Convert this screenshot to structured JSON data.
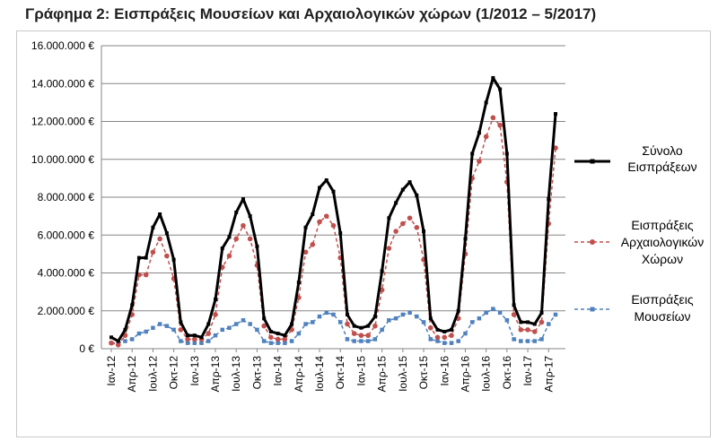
{
  "title": "Γράφημα 2: Εισπράξεις Μουσείων και Αρχαιολογικών χώρων (1/2012 – 5/2017)",
  "chart_data": {
    "type": "line",
    "title": "Γράφημα 2: Εισπράξεις Μουσείων και Αρχαιολογικών χώρων (1/2012 – 5/2017)",
    "x": [
      "Ιαν-12",
      "Φεβ-12",
      "Μαρ-12",
      "Απρ-12",
      "Μαϊ-12",
      "Ιουν-12",
      "Ιουλ-12",
      "Αυγ-12",
      "Σεπ-12",
      "Οκτ-12",
      "Νοε-12",
      "Δεκ-12",
      "Ιαν-13",
      "Φεβ-13",
      "Μαρ-13",
      "Απρ-13",
      "Μαϊ-13",
      "Ιουν-13",
      "Ιουλ-13",
      "Αυγ-13",
      "Σεπ-13",
      "Οκτ-13",
      "Νοε-13",
      "Δεκ-13",
      "Ιαν-14",
      "Φεβ-14",
      "Μαρ-14",
      "Απρ-14",
      "Μαϊ-14",
      "Ιουν-14",
      "Ιουλ-14",
      "Αυγ-14",
      "Σεπ-14",
      "Οκτ-14",
      "Νοε-14",
      "Δεκ-14",
      "Ιαν-15",
      "Φεβ-15",
      "Μαρ-15",
      "Απρ-15",
      "Μαϊ-15",
      "Ιουν-15",
      "Ιουλ-15",
      "Αυγ-15",
      "Σεπ-15",
      "Οκτ-15",
      "Νοε-15",
      "Δεκ-15",
      "Ιαν-16",
      "Φεβ-16",
      "Μαρ-16",
      "Απρ-16",
      "Μαϊ-16",
      "Ιουν-16",
      "Ιουλ-16",
      "Αυγ-16",
      "Σεπ-16",
      "Οκτ-16",
      "Νοε-16",
      "Δεκ-16",
      "Ιαν-17",
      "Φεβ-17",
      "Μαρ-17",
      "Απρ-17",
      "Μαϊ-17"
    ],
    "x_tick_labels": [
      {
        "index": 0,
        "label": "Ιαν-12"
      },
      {
        "index": 3,
        "label": "Απρ-12"
      },
      {
        "index": 6,
        "label": "Ιουλ-12"
      },
      {
        "index": 9,
        "label": "Οκτ-12"
      },
      {
        "index": 12,
        "label": "Ιαν-13"
      },
      {
        "index": 15,
        "label": "Απρ-13"
      },
      {
        "index": 18,
        "label": "Ιουλ-13"
      },
      {
        "index": 21,
        "label": "Οκτ-13"
      },
      {
        "index": 24,
        "label": "Ιαν-14"
      },
      {
        "index": 27,
        "label": "Απρ-14"
      },
      {
        "index": 30,
        "label": "Ιουλ-14"
      },
      {
        "index": 33,
        "label": "Οκτ-14"
      },
      {
        "index": 36,
        "label": "Ιαν-15"
      },
      {
        "index": 39,
        "label": "Απρ-15"
      },
      {
        "index": 42,
        "label": "Ιουλ-15"
      },
      {
        "index": 45,
        "label": "Οκτ-15"
      },
      {
        "index": 48,
        "label": "Ιαν-16"
      },
      {
        "index": 51,
        "label": "Απρ-16"
      },
      {
        "index": 54,
        "label": "Ιουλ-16"
      },
      {
        "index": 57,
        "label": "Οκτ-16"
      },
      {
        "index": 60,
        "label": "Ιαν-17"
      },
      {
        "index": 63,
        "label": "Απρ-17"
      }
    ],
    "y_ticks": [
      {
        "value": 0,
        "label": "0 €"
      },
      {
        "value": 2000000,
        "label": "2.000.000 €"
      },
      {
        "value": 4000000,
        "label": "4.000.000 €"
      },
      {
        "value": 6000000,
        "label": "6.000.000 €"
      },
      {
        "value": 8000000,
        "label": "8.000.000 €"
      },
      {
        "value": 10000000,
        "label": "10.000.000 €"
      },
      {
        "value": 12000000,
        "label": "12.000.000 €"
      },
      {
        "value": 14000000,
        "label": "14.000.000 €"
      },
      {
        "value": 16000000,
        "label": "16.000.000 €"
      }
    ],
    "ylim": [
      0,
      16000000
    ],
    "grid": "horizontal",
    "legend_position": "right",
    "xlabel": "",
    "ylabel": "",
    "series": [
      {
        "name_lines": [
          "Σύνολο",
          "Εισπράξεων"
        ],
        "color": "#000000",
        "style": "solid",
        "marker": "square",
        "values": [
          600000,
          400000,
          1000000,
          2300000,
          4800000,
          4800000,
          6400000,
          7100000,
          6100000,
          4700000,
          1400000,
          700000,
          700000,
          600000,
          1300000,
          2600000,
          5300000,
          5900000,
          7200000,
          7900000,
          7000000,
          5400000,
          1600000,
          900000,
          800000,
          700000,
          1300000,
          3500000,
          6400000,
          7100000,
          8500000,
          8900000,
          8300000,
          6100000,
          1800000,
          1200000,
          1100000,
          1200000,
          1700000,
          4100000,
          6900000,
          7700000,
          8400000,
          8800000,
          8100000,
          6200000,
          1600000,
          1000000,
          900000,
          1000000,
          2000000,
          5800000,
          10300000,
          11400000,
          13000000,
          14300000,
          13700000,
          10300000,
          2300000,
          1400000,
          1400000,
          1300000,
          1900000,
          7900000,
          12400000
        ]
      },
      {
        "name_lines": [
          "Εισπράξεις",
          "Αρχαιολογικών",
          "Χώρων"
        ],
        "color": "#c0504d",
        "style": "dashed",
        "marker": "circle",
        "values": [
          300000,
          200000,
          700000,
          1800000,
          3900000,
          3900000,
          5100000,
          5800000,
          4900000,
          3700000,
          1000000,
          500000,
          500000,
          500000,
          800000,
          1800000,
          4300000,
          4900000,
          5800000,
          6500000,
          5800000,
          4400000,
          1200000,
          600000,
          500000,
          500000,
          1000000,
          2700000,
          5100000,
          5500000,
          6700000,
          7000000,
          6500000,
          4800000,
          1300000,
          800000,
          700000,
          700000,
          1200000,
          3100000,
          5300000,
          6200000,
          6600000,
          6900000,
          6400000,
          4700000,
          1100000,
          600000,
          600000,
          700000,
          1600000,
          5000000,
          9000000,
          9900000,
          11200000,
          12200000,
          11800000,
          8800000,
          1800000,
          1000000,
          1000000,
          900000,
          1400000,
          6600000,
          10600000
        ]
      },
      {
        "name_lines": [
          "Εισπράξεις",
          "Μουσείων"
        ],
        "color": "#4f81bd",
        "style": "dashed",
        "marker": "square",
        "values": [
          300000,
          300000,
          400000,
          500000,
          800000,
          900000,
          1100000,
          1300000,
          1200000,
          1000000,
          400000,
          300000,
          300000,
          300000,
          400000,
          700000,
          1000000,
          1100000,
          1300000,
          1500000,
          1300000,
          1000000,
          400000,
          300000,
          300000,
          300000,
          400000,
          800000,
          1300000,
          1400000,
          1700000,
          1900000,
          1800000,
          1400000,
          500000,
          400000,
          400000,
          400000,
          500000,
          1000000,
          1500000,
          1600000,
          1800000,
          1900000,
          1700000,
          1400000,
          500000,
          400000,
          300000,
          300000,
          400000,
          800000,
          1400000,
          1600000,
          1900000,
          2100000,
          1900000,
          1500000,
          500000,
          400000,
          400000,
          400000,
          500000,
          1300000,
          1800000
        ]
      }
    ]
  }
}
